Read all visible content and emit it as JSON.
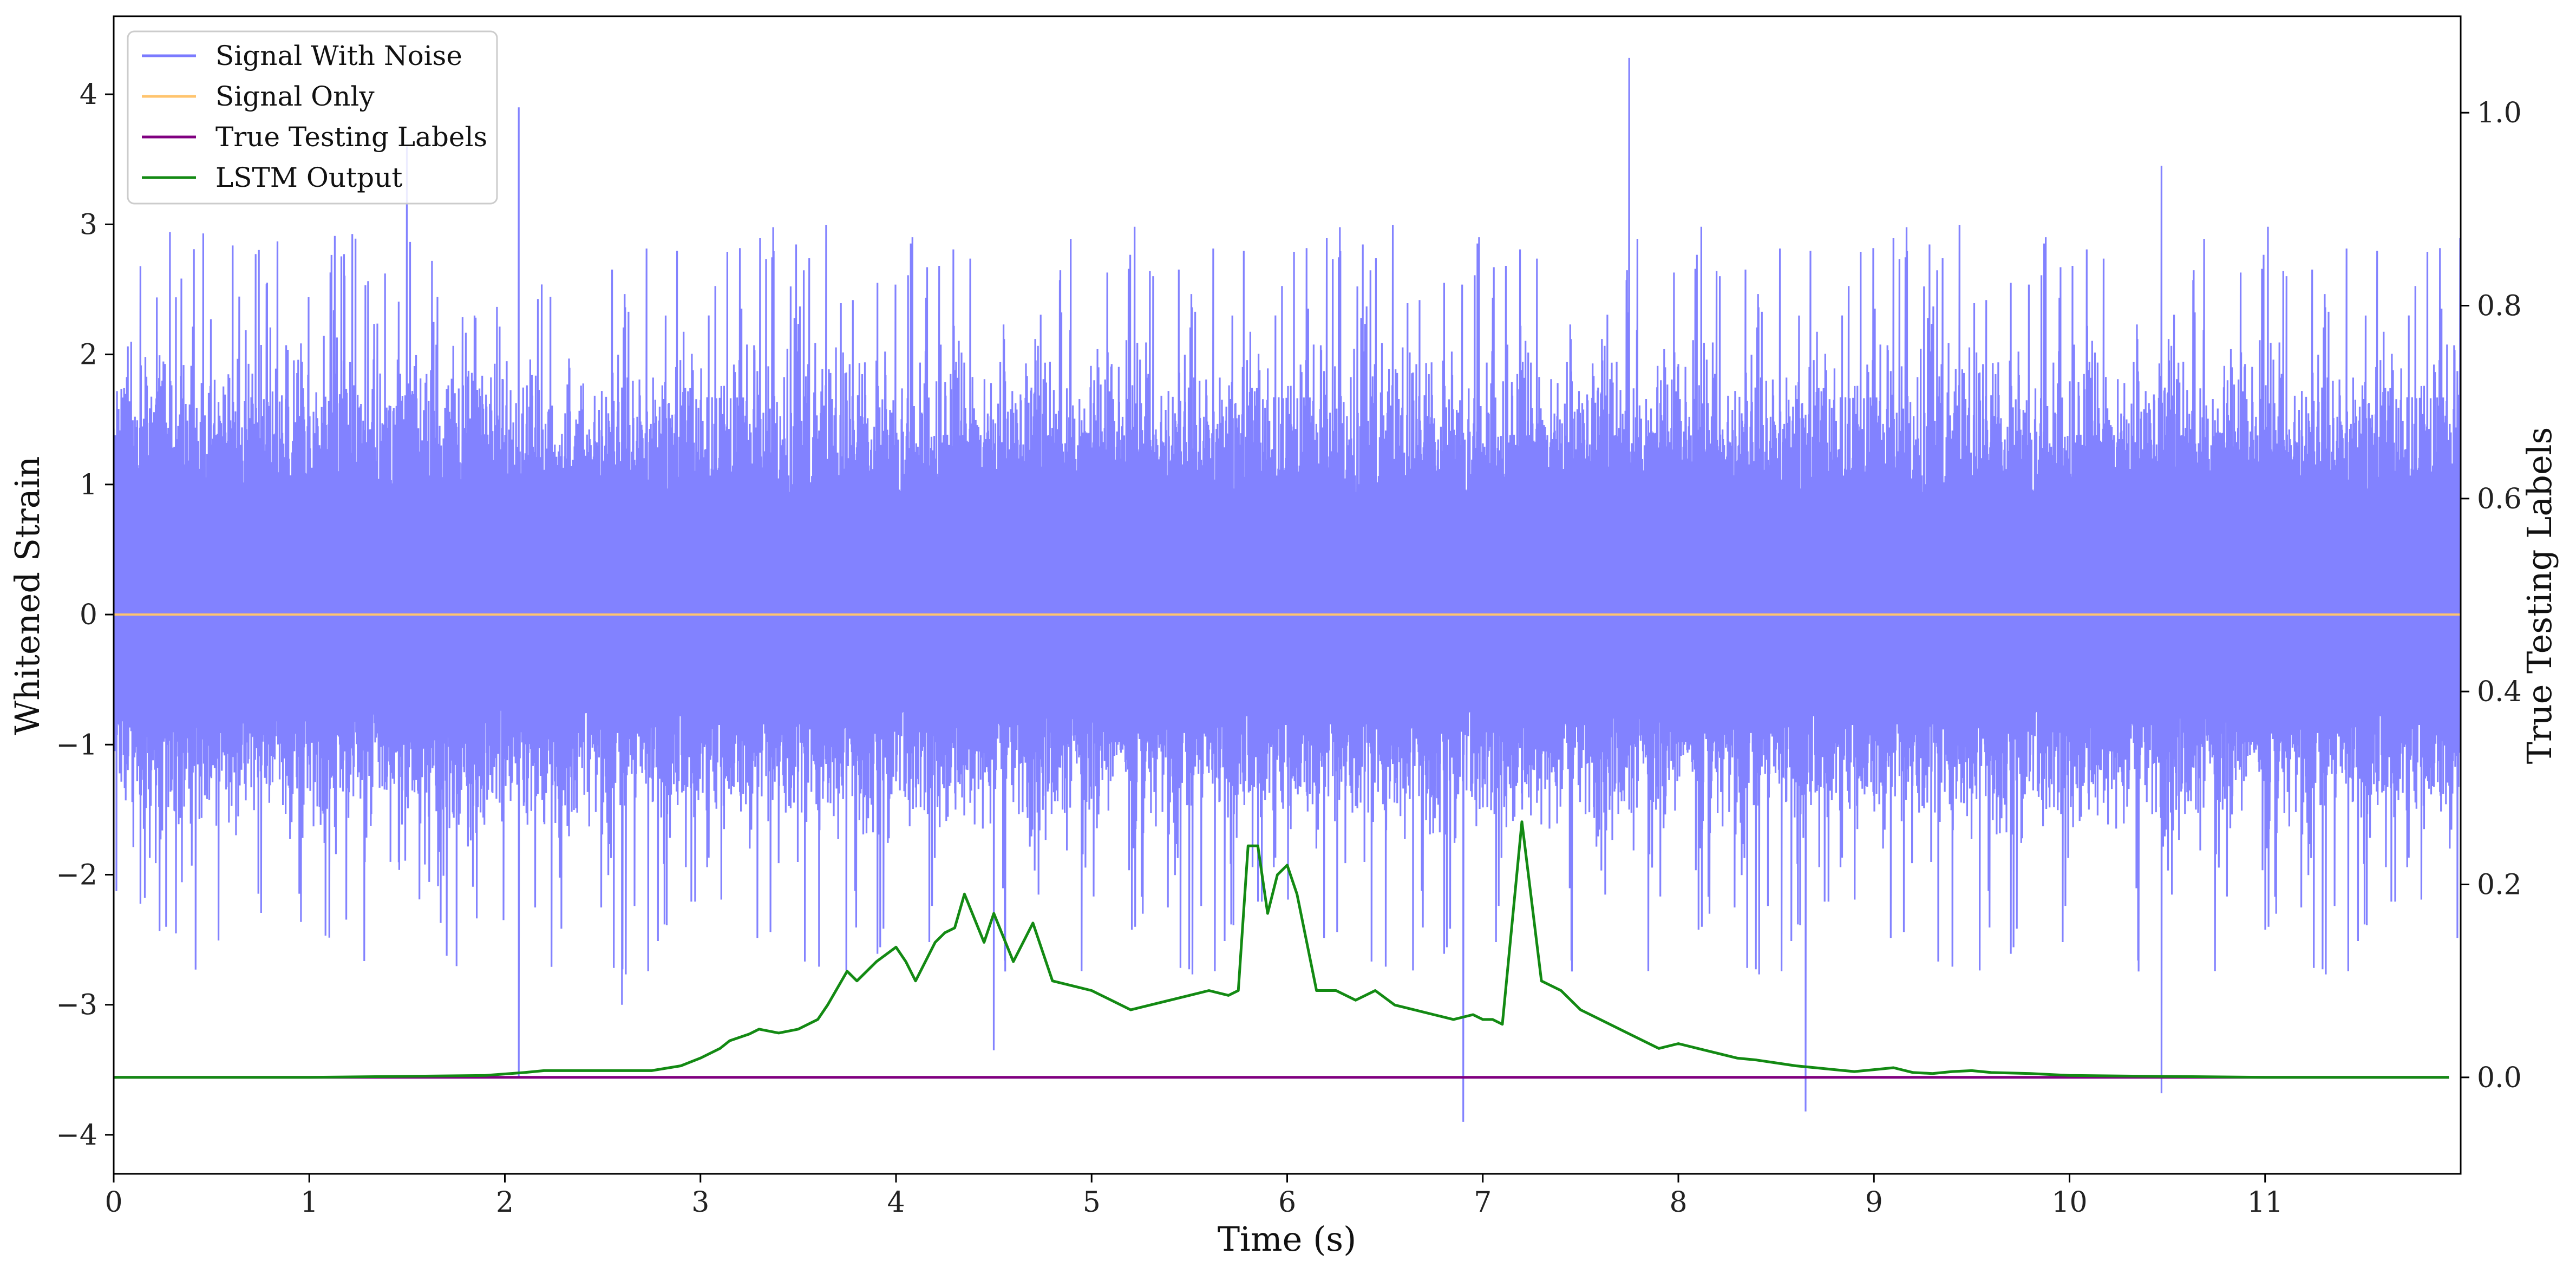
{
  "chart_data": {
    "type": "line",
    "xlabel": "Time (s)",
    "ylabel": "Whitened Strain",
    "y2label": "True Testing Labels",
    "xlim": [
      0,
      12.0
    ],
    "ylim": [
      -4.3,
      4.6
    ],
    "y2lim": [
      -0.1,
      1.1
    ],
    "x_ticks": [
      "0",
      "1",
      "2",
      "3",
      "4",
      "5",
      "6",
      "7",
      "8",
      "9",
      "10",
      "11"
    ],
    "y_ticks": [
      "−4",
      "−3",
      "−2",
      "−1",
      "0",
      "1",
      "2",
      "3",
      "4"
    ],
    "y2_ticks": [
      "0.0",
      "0.2",
      "0.4",
      "0.6",
      "0.8",
      "1.0"
    ],
    "grid": false,
    "legend_position": "upper-left",
    "colors": {
      "noise": "#7b7bff",
      "signal": "#ffc46e",
      "labels": "#800080",
      "lstm": "#138a13"
    },
    "series": [
      {
        "name": "Signal With Noise",
        "axis": "left",
        "description_note": "",
        "envelope": {
          "typical_upper": 2.2,
          "typical_lower": -1.8,
          "spikes": [
            {
              "x": 1.5,
              "y": 3.6
            },
            {
              "x": 2.07,
              "y": 3.9
            },
            {
              "x": 2.07,
              "y": -3.55
            },
            {
              "x": 6.9,
              "y": -3.9
            },
            {
              "x": 7.75,
              "y": 4.28
            },
            {
              "x": 8.65,
              "y": -3.82
            },
            {
              "x": 10.47,
              "y": -3.68
            },
            {
              "x": 10.47,
              "y": 3.45
            },
            {
              "x": 2.6,
              "y": -3.0
            },
            {
              "x": 4.5,
              "y": -3.35
            }
          ]
        }
      },
      {
        "name": "Signal Only",
        "axis": "left",
        "x": [
          0,
          12.0
        ],
        "y": [
          0,
          0
        ]
      },
      {
        "name": "True Testing Labels",
        "axis": "right",
        "x": [
          0,
          11.94
        ],
        "y": [
          0,
          0
        ]
      },
      {
        "name": "LSTM Output",
        "axis": "right",
        "x": [
          0,
          1,
          1.9,
          2.1,
          2.2,
          2.5,
          2.75,
          2.9,
          3.0,
          3.1,
          3.15,
          3.25,
          3.3,
          3.4,
          3.5,
          3.6,
          3.65,
          3.75,
          3.8,
          3.9,
          4.0,
          4.05,
          4.1,
          4.2,
          4.25,
          4.3,
          4.35,
          4.45,
          4.5,
          4.6,
          4.7,
          4.75,
          4.8,
          4.9,
          5.0,
          5.1,
          5.2,
          5.3,
          5.4,
          5.5,
          5.6,
          5.7,
          5.75,
          5.8,
          5.85,
          5.9,
          5.95,
          6.0,
          6.05,
          6.15,
          6.25,
          6.35,
          6.45,
          6.55,
          6.65,
          6.75,
          6.85,
          6.95,
          7.0,
          7.05,
          7.1,
          7.2,
          7.3,
          7.4,
          7.5,
          7.6,
          7.7,
          7.8,
          7.9,
          8.0,
          8.1,
          8.2,
          8.3,
          8.4,
          8.5,
          8.6,
          8.7,
          8.8,
          8.9,
          9.0,
          9.1,
          9.2,
          9.3,
          9.4,
          9.5,
          9.6,
          9.8,
          10,
          10.5,
          11,
          11.5,
          11.94
        ],
        "y": [
          0,
          0,
          0.002,
          0.005,
          0.007,
          0.007,
          0.007,
          0.012,
          0.02,
          0.03,
          0.038,
          0.045,
          0.05,
          0.046,
          0.05,
          0.06,
          0.075,
          0.11,
          0.1,
          0.12,
          0.135,
          0.12,
          0.1,
          0.14,
          0.15,
          0.155,
          0.19,
          0.14,
          0.17,
          0.12,
          0.16,
          0.13,
          0.1,
          0.095,
          0.09,
          0.08,
          0.07,
          0.075,
          0.08,
          0.085,
          0.09,
          0.085,
          0.09,
          0.24,
          0.24,
          0.17,
          0.21,
          0.22,
          0.19,
          0.09,
          0.09,
          0.08,
          0.09,
          0.075,
          0.07,
          0.065,
          0.06,
          0.065,
          0.06,
          0.06,
          0.055,
          0.265,
          0.1,
          0.09,
          0.07,
          0.06,
          0.05,
          0.04,
          0.03,
          0.035,
          0.03,
          0.025,
          0.02,
          0.018,
          0.015,
          0.012,
          0.01,
          0.008,
          0.006,
          0.008,
          0.01,
          0.005,
          0.004,
          0.006,
          0.007,
          0.005,
          0.004,
          0.002,
          0.001,
          0,
          0,
          0
        ]
      }
    ]
  }
}
